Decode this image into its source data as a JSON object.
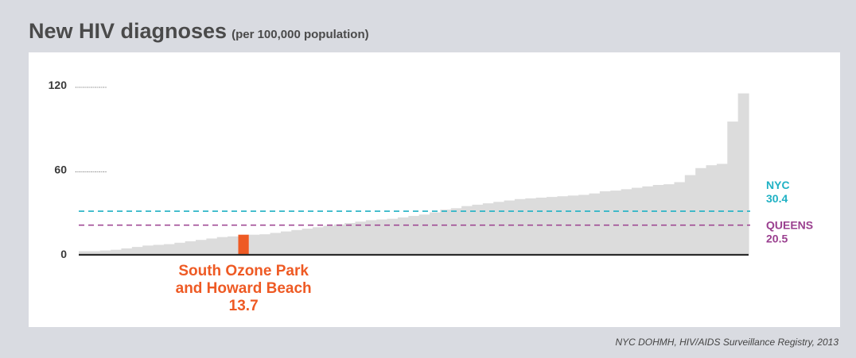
{
  "title": "New HIV diagnoses",
  "subtitle": "(per 100,000 population)",
  "source": "NYC DOHMH, HIV/AIDS Surveillance Registry, 2013",
  "colors": {
    "bar": "#dcdcdc",
    "highlight": "#ee5a24",
    "nyc": "#1fb1c4",
    "queens": "#9a3f8f",
    "axis": "#2b2b2b"
  },
  "chart_data": {
    "type": "bar",
    "ylim": [
      0,
      120
    ],
    "yticks": [
      {
        "value": 120,
        "label": "120"
      },
      {
        "value": 60,
        "label": "60"
      },
      {
        "value": 0,
        "label": "0"
      }
    ],
    "values": [
      2,
      2,
      2.5,
      3,
      4,
      5,
      6,
      6.5,
      7,
      8,
      9,
      10,
      11,
      12,
      12.5,
      13.7,
      13.7,
      14,
      15,
      16,
      17,
      18,
      19,
      20,
      21,
      22,
      23,
      24,
      24.5,
      25,
      26,
      27,
      28,
      29.5,
      31.5,
      32.5,
      34,
      35,
      36,
      37,
      38,
      39,
      39.5,
      40,
      40.5,
      41,
      41.5,
      42,
      43,
      44.5,
      45,
      46,
      47,
      48,
      49,
      49.5,
      51,
      56,
      61,
      63,
      64,
      94,
      114
    ],
    "highlight": {
      "index": 15,
      "lines": [
        "South Ozone Park",
        "and Howard Beach",
        "13.7"
      ],
      "value": 13.7
    },
    "references": [
      {
        "name": "NYC",
        "value": 30.4,
        "label_name": "NYC",
        "label_value": "30.4"
      },
      {
        "name": "QUEENS",
        "value": 20.5,
        "label_name": "QUEENS",
        "label_value": "20.5"
      }
    ]
  }
}
